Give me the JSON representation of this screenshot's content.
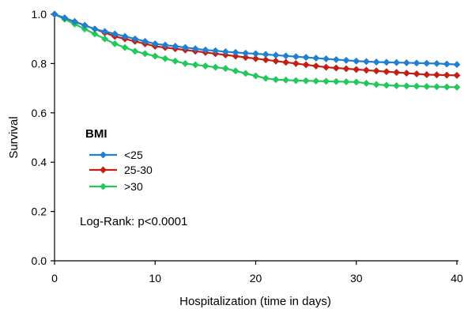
{
  "chart_data": {
    "type": "line",
    "title": "",
    "xlabel": "Hospitalization (time in days)",
    "ylabel": "Survival",
    "xlim": [
      0,
      40
    ],
    "ylim": [
      0.0,
      1.0
    ],
    "x_ticks": [
      0,
      10,
      20,
      30,
      40
    ],
    "x_tick_labels": [
      "0",
      "10",
      "20",
      "30",
      "40"
    ],
    "y_ticks": [
      0.0,
      0.2,
      0.4,
      0.6,
      0.8,
      1.0
    ],
    "y_tick_labels": [
      "0.0",
      "0.2",
      "0.4",
      "0.6",
      "0.8",
      "1.0"
    ],
    "grid": false,
    "legend": {
      "title": "BMI",
      "placement": "middle-left"
    },
    "annotation": "Log-Rank: p<0.0001",
    "series": [
      {
        "name": "<25",
        "color": "#1f7fd0",
        "marker": "diamond",
        "x": [
          0,
          1,
          2,
          3,
          4,
          5,
          6,
          7,
          8,
          9,
          10,
          11,
          12,
          13,
          14,
          15,
          16,
          17,
          18,
          19,
          20,
          21,
          22,
          23,
          24,
          25,
          26,
          27,
          28,
          29,
          30,
          31,
          32,
          33,
          34,
          35,
          36,
          37,
          38,
          39,
          40
        ],
        "y": [
          1.0,
          0.985,
          0.97,
          0.955,
          0.94,
          0.93,
          0.92,
          0.91,
          0.9,
          0.89,
          0.88,
          0.875,
          0.87,
          0.865,
          0.86,
          0.855,
          0.852,
          0.848,
          0.845,
          0.842,
          0.84,
          0.837,
          0.834,
          0.831,
          0.828,
          0.825,
          0.822,
          0.819,
          0.816,
          0.813,
          0.81,
          0.808,
          0.806,
          0.805,
          0.804,
          0.803,
          0.802,
          0.801,
          0.8,
          0.798,
          0.796
        ]
      },
      {
        "name": "25-30",
        "color": "#c41e12",
        "marker": "diamond",
        "x": [
          0,
          1,
          2,
          3,
          4,
          5,
          6,
          7,
          8,
          9,
          10,
          11,
          12,
          13,
          14,
          15,
          16,
          17,
          18,
          19,
          20,
          21,
          22,
          23,
          24,
          25,
          26,
          27,
          28,
          29,
          30,
          31,
          32,
          33,
          34,
          35,
          36,
          37,
          38,
          39,
          40
        ],
        "y": [
          1.0,
          0.985,
          0.97,
          0.955,
          0.94,
          0.925,
          0.91,
          0.9,
          0.89,
          0.88,
          0.87,
          0.865,
          0.86,
          0.855,
          0.85,
          0.845,
          0.84,
          0.835,
          0.83,
          0.825,
          0.82,
          0.815,
          0.81,
          0.805,
          0.8,
          0.795,
          0.79,
          0.785,
          0.782,
          0.779,
          0.776,
          0.773,
          0.77,
          0.767,
          0.764,
          0.761,
          0.758,
          0.755,
          0.754,
          0.753,
          0.752
        ]
      },
      {
        "name": ">30",
        "color": "#22c85a",
        "marker": "diamond",
        "x": [
          0,
          1,
          2,
          3,
          4,
          5,
          6,
          7,
          8,
          9,
          10,
          11,
          12,
          13,
          14,
          15,
          16,
          17,
          18,
          19,
          20,
          21,
          22,
          23,
          24,
          25,
          26,
          27,
          28,
          29,
          30,
          31,
          32,
          33,
          34,
          35,
          36,
          37,
          38,
          39,
          40
        ],
        "y": [
          1.0,
          0.98,
          0.96,
          0.94,
          0.92,
          0.9,
          0.88,
          0.865,
          0.85,
          0.84,
          0.83,
          0.82,
          0.81,
          0.8,
          0.795,
          0.79,
          0.785,
          0.78,
          0.77,
          0.76,
          0.75,
          0.74,
          0.735,
          0.733,
          0.731,
          0.73,
          0.729,
          0.728,
          0.727,
          0.726,
          0.725,
          0.72,
          0.715,
          0.712,
          0.71,
          0.709,
          0.708,
          0.707,
          0.706,
          0.705,
          0.704
        ]
      }
    ]
  }
}
